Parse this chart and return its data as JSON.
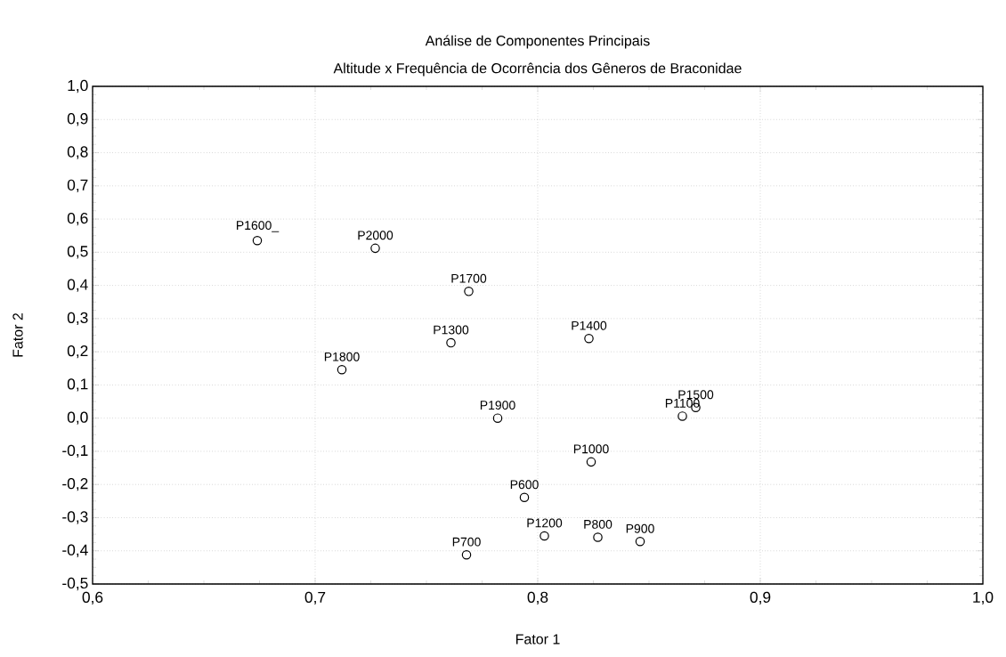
{
  "chart_data": {
    "type": "scatter",
    "title": "Análise de Componentes Principais",
    "subtitle": "Altitude x Frequência de Ocorrência dos Gêneros de Braconidae",
    "xlabel": "Fator 1",
    "ylabel": "Fator 2",
    "series": [
      {
        "color": "#000000",
        "x": [
          0.674,
          0.727,
          0.769,
          0.712,
          0.761,
          0.768,
          0.823,
          0.782,
          0.865,
          0.871,
          0.824,
          0.794,
          0.803,
          0.827,
          0.846
        ],
        "values": [
          0.535,
          0.512,
          0.382,
          0.146,
          0.227,
          -0.412,
          0.24,
          0.0,
          0.006,
          0.032,
          -0.132,
          -0.239,
          -0.355,
          -0.359,
          -0.372
        ]
      }
    ],
    "annotations": [
      {
        "text": "P1600_",
        "x": 0.674,
        "y": 0.535
      },
      {
        "text": "P2000",
        "x": 0.727,
        "y": 0.512
      },
      {
        "text": "P1700",
        "x": 0.769,
        "y": 0.382
      },
      {
        "text": "P1800",
        "x": 0.712,
        "y": 0.146
      },
      {
        "text": "P1300",
        "x": 0.761,
        "y": 0.227
      },
      {
        "text": "P700",
        "x": 0.768,
        "y": -0.412
      },
      {
        "text": "P1400",
        "x": 0.823,
        "y": 0.24
      },
      {
        "text": "P1900",
        "x": 0.782,
        "y": 0.0
      },
      {
        "text": "P1100",
        "x": 0.865,
        "y": 0.006
      },
      {
        "text": "P1500",
        "x": 0.871,
        "y": 0.032
      },
      {
        "text": "P1000",
        "x": 0.824,
        "y": -0.132
      },
      {
        "text": "P600",
        "x": 0.794,
        "y": -0.239
      },
      {
        "text": "P1200",
        "x": 0.803,
        "y": -0.355
      },
      {
        "text": "P800",
        "x": 0.827,
        "y": -0.359
      },
      {
        "text": "P900",
        "x": 0.846,
        "y": -0.372
      }
    ],
    "xlim": [
      0.6,
      1.0
    ],
    "xticks": [
      {
        "value": 0.6,
        "label": "0,6"
      },
      {
        "value": 0.7,
        "label": "0,7"
      },
      {
        "value": 0.8,
        "label": "0,8"
      },
      {
        "value": 0.9,
        "label": "0,9"
      },
      {
        "value": 1.0,
        "label": "1,0"
      }
    ],
    "ylim": [
      -0.5,
      1.0
    ],
    "yticks": [
      {
        "value": -0.5,
        "label": "-0,5"
      },
      {
        "value": -0.4,
        "label": "-0,4"
      },
      {
        "value": -0.3,
        "label": "-0,3"
      },
      {
        "value": -0.2,
        "label": "-0,2"
      },
      {
        "value": -0.1,
        "label": "-0,1"
      },
      {
        "value": 0.0,
        "label": "0,0"
      },
      {
        "value": 0.1,
        "label": "0,1"
      },
      {
        "value": 0.2,
        "label": "0,2"
      },
      {
        "value": 0.3,
        "label": "0,3"
      },
      {
        "value": 0.4,
        "label": "0,4"
      },
      {
        "value": 0.5,
        "label": "0,5"
      },
      {
        "value": 0.6,
        "label": "0,6"
      },
      {
        "value": 0.7,
        "label": "0,7"
      },
      {
        "value": 0.8,
        "label": "0,8"
      },
      {
        "value": 0.9,
        "label": "0,9"
      },
      {
        "value": 1.0,
        "label": "1,0"
      }
    ],
    "grid": true,
    "marker": "circle"
  }
}
